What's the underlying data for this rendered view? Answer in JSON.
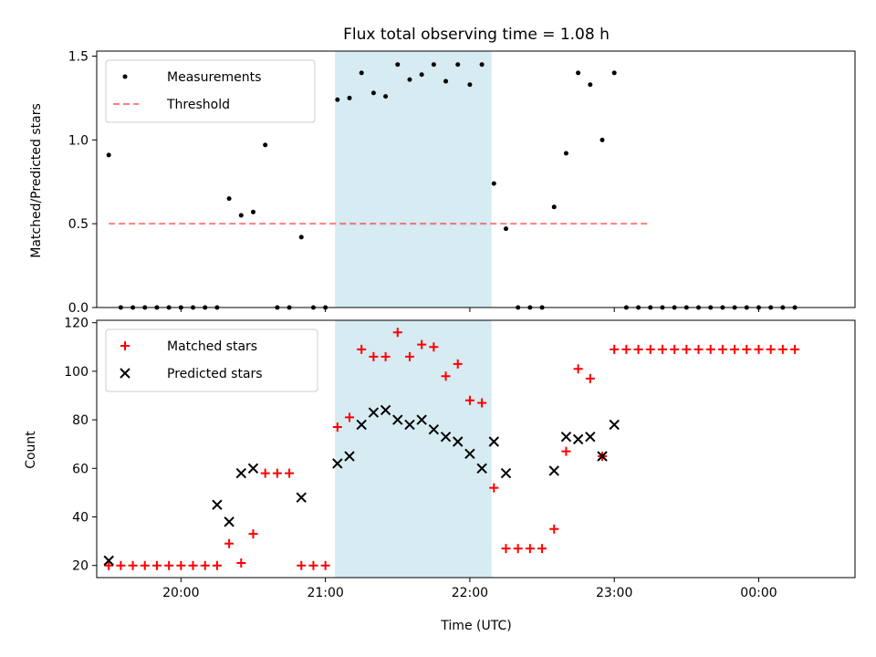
{
  "chart_data": [
    {
      "type": "scatter",
      "title": "Flux total observing time = 1.08 h",
      "xlabel": "",
      "ylabel": "Matched/Predicted stars",
      "ylim": [
        0,
        1.53
      ],
      "yticks": [
        "0.0",
        "0.5",
        "1.0",
        "1.5"
      ],
      "legend_position": "top-left",
      "legend": [
        "Measurements",
        "Threshold"
      ],
      "threshold": 0.5,
      "threshold_range": [
        "19:30",
        "23:15"
      ],
      "shaded_interval": [
        "21:04",
        "22:09"
      ],
      "series": [
        {
          "name": "Measurements",
          "color": "#000000",
          "x": [
            "19:30",
            "19:35",
            "19:40",
            "19:45",
            "19:50",
            "19:55",
            "20:00",
            "20:05",
            "20:10",
            "20:15",
            "20:20",
            "20:25",
            "20:30",
            "20:35",
            "20:40",
            "20:45",
            "20:50",
            "20:55",
            "21:00",
            "21:05",
            "21:10",
            "21:15",
            "21:20",
            "21:25",
            "21:30",
            "21:35",
            "21:40",
            "21:45",
            "21:50",
            "21:55",
            "22:00",
            "22:05",
            "22:10",
            "22:15",
            "22:20",
            "22:25",
            "22:30",
            "22:35",
            "22:40",
            "22:45",
            "22:50",
            "22:55",
            "23:00",
            "23:05",
            "23:10",
            "23:15",
            "23:20",
            "23:25",
            "23:30",
            "23:35",
            "23:40",
            "23:45",
            "23:50",
            "23:55",
            "00:00",
            "00:05",
            "00:10",
            "00:15"
          ],
          "y": [
            0.91,
            0,
            0,
            0,
            0,
            0,
            0,
            0,
            0,
            0,
            0.65,
            0.55,
            0.57,
            0.97,
            0,
            0,
            0.42,
            0,
            0,
            1.24,
            1.25,
            1.4,
            1.28,
            1.26,
            1.45,
            1.36,
            1.39,
            1.45,
            1.35,
            1.45,
            1.33,
            1.45,
            0.74,
            0.47,
            0,
            0,
            0,
            0.6,
            0.92,
            1.4,
            1.33,
            1.0,
            1.4,
            0,
            0,
            0,
            0,
            0,
            0,
            0,
            0,
            0,
            0,
            0,
            0,
            0,
            0,
            0
          ]
        }
      ]
    },
    {
      "type": "scatter",
      "title": "",
      "xlabel": "Time (UTC)",
      "ylabel": "Count",
      "ylim": [
        15,
        121
      ],
      "yticks": [
        "20",
        "40",
        "60",
        "80",
        "100",
        "120"
      ],
      "xticks": [
        "20:00",
        "21:00",
        "22:00",
        "23:00",
        "00:00"
      ],
      "legend_position": "top-left",
      "legend": [
        "Matched stars",
        "Predicted stars"
      ],
      "shaded_interval": [
        "21:04",
        "22:09"
      ],
      "series": [
        {
          "name": "Matched stars",
          "marker": "plus",
          "color": "#ff0000",
          "x": [
            "19:30",
            "19:35",
            "19:40",
            "19:45",
            "19:50",
            "19:55",
            "20:00",
            "20:05",
            "20:10",
            "20:15",
            "20:20",
            "20:25",
            "20:30",
            "20:35",
            "20:40",
            "20:45",
            "20:50",
            "20:55",
            "21:00",
            "21:05",
            "21:10",
            "21:15",
            "21:20",
            "21:25",
            "21:30",
            "21:35",
            "21:40",
            "21:45",
            "21:50",
            "21:55",
            "22:00",
            "22:05",
            "22:10",
            "22:15",
            "22:20",
            "22:25",
            "22:30",
            "22:35",
            "22:40",
            "22:45",
            "22:50",
            "22:55",
            "23:00",
            "23:05",
            "23:10",
            "23:15",
            "23:20",
            "23:25",
            "23:30",
            "23:35",
            "23:40",
            "23:45",
            "23:50",
            "23:55",
            "00:00",
            "00:05",
            "00:10",
            "00:15"
          ],
          "y": [
            20,
            20,
            20,
            20,
            20,
            20,
            20,
            20,
            20,
            20,
            29,
            21,
            33,
            58,
            58,
            58,
            20,
            20,
            20,
            77,
            81,
            109,
            106,
            106,
            116,
            106,
            111,
            110,
            98,
            103,
            88,
            87,
            52,
            27,
            27,
            27,
            27,
            35,
            67,
            101,
            97,
            65,
            109,
            109,
            109,
            109,
            109,
            109,
            109,
            109,
            109,
            109,
            109,
            109,
            109,
            109,
            109,
            109
          ]
        },
        {
          "name": "Predicted stars",
          "marker": "x",
          "color": "#000000",
          "x": [
            "19:30",
            "20:15",
            "20:20",
            "20:25",
            "20:30",
            "20:50",
            "21:05",
            "21:10",
            "21:15",
            "21:20",
            "21:25",
            "21:30",
            "21:35",
            "21:40",
            "21:45",
            "21:50",
            "21:55",
            "22:00",
            "22:05",
            "22:10",
            "22:15",
            "22:35",
            "22:40",
            "22:45",
            "22:50",
            "22:55",
            "23:00"
          ],
          "y": [
            22,
            45,
            38,
            58,
            60,
            48,
            62,
            65,
            78,
            83,
            84,
            80,
            78,
            80,
            76,
            73,
            71,
            66,
            60,
            71,
            58,
            59,
            73,
            72,
            73,
            65,
            78
          ]
        }
      ]
    }
  ]
}
